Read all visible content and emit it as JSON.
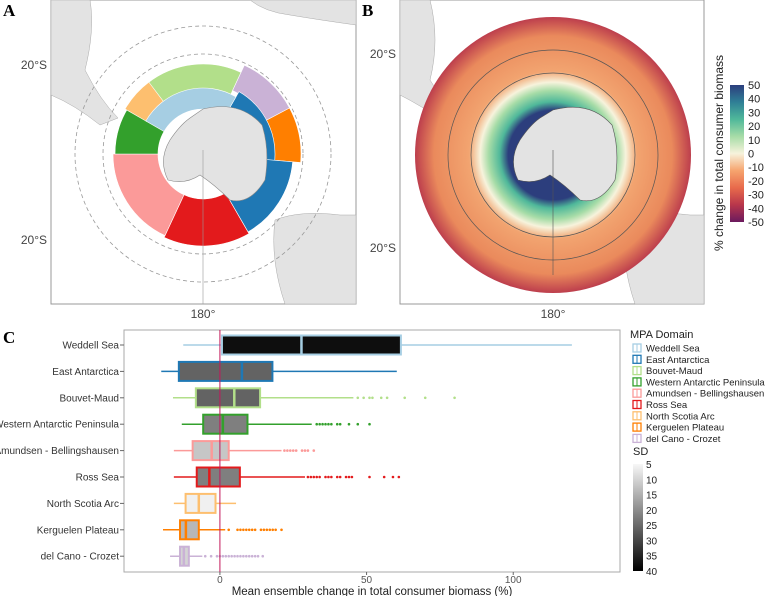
{
  "panels": {
    "a": "A",
    "b": "B",
    "c": "C"
  },
  "map_a": {
    "lat_labels": [
      "20°S",
      "20°S"
    ],
    "lon_label": "180°",
    "land_color": "#e3e3e3",
    "domains": [
      {
        "name": "Bouvet-Maud",
        "color": "#b2df8a"
      },
      {
        "name": "del Cano - Crozet",
        "color": "#cab2d6"
      },
      {
        "name": "Kerguelen Plateau",
        "color": "#ff7f00"
      },
      {
        "name": "East Antarctica",
        "color": "#1f78b4"
      },
      {
        "name": "Ross Sea",
        "color": "#e31a1c"
      },
      {
        "name": "Amundsen - Bellingshausen",
        "color": "#fb9a99"
      },
      {
        "name": "Western Antarctic Peninsula",
        "color": "#33a02c"
      },
      {
        "name": "North Scotia Arc",
        "color": "#fdbf6f"
      },
      {
        "name": "Weddell Sea",
        "color": "#a6cee3"
      }
    ]
  },
  "map_b": {
    "lat_labels": [
      "20°S",
      "20°S"
    ],
    "lon_label": "180°",
    "colorbar": {
      "title": "% change in total consumer biomass",
      "ticks": [
        "50",
        "40",
        "30",
        "20",
        "10",
        "0",
        "-10",
        "-20",
        "-30",
        "-40",
        "-50"
      ],
      "range": [
        -50,
        50
      ],
      "colors": [
        "#2c3e7d",
        "#2f7f96",
        "#4fb89a",
        "#a6dca7",
        "#f7f3dc",
        "#f6a46e",
        "#e86a4b",
        "#b8364b",
        "#6b1a5e"
      ]
    }
  },
  "chart_data": {
    "type": "boxplot",
    "xlabel": "Mean ensemble change in total consumer biomass (%)",
    "xlim": [
      -32.7,
      136.4
    ],
    "xticks": [
      0,
      50,
      100
    ],
    "reference_line": {
      "x": 0,
      "color": "#c2185b"
    },
    "categories": [
      "Weddell Sea",
      "East Antarctica",
      "Bouvet-Maud",
      "Western Antarctic Peninsula",
      "Amundsen - Bellingshausen",
      "Ross Sea",
      "North Scotia Arc",
      "Kerguelen Plateau",
      "del Cano - Crozet"
    ],
    "series": [
      {
        "name": "Weddell Sea",
        "color": "#a6cee3",
        "sd": 38,
        "whisker_low": -12.5,
        "q1": 0.7,
        "median": 27.8,
        "q3": 61.7,
        "whisker_high": 120,
        "outliers": []
      },
      {
        "name": "East Antarctica",
        "color": "#1f78b4",
        "sd": 26,
        "whisker_low": -20,
        "q1": -14,
        "median": 7.5,
        "q3": 17.9,
        "whisker_high": 60.3,
        "outliers": []
      },
      {
        "name": "Bouvet-Maud",
        "color": "#b2df8a",
        "sd": 26,
        "whisker_low": -16,
        "q1": -8.2,
        "median": 4.9,
        "q3": 13.7,
        "whisker_high": 45.5,
        "outliers": [
          47,
          49,
          51,
          52,
          55,
          57,
          63,
          70,
          80
        ]
      },
      {
        "name": "Western Antarctic Peninsula",
        "color": "#33a02c",
        "sd": 22,
        "whisker_low": -13,
        "q1": -5.7,
        "median": 1,
        "q3": 9.4,
        "whisker_high": 31.3,
        "outliers": [
          33,
          34,
          35,
          36,
          37,
          38,
          40,
          41,
          44,
          47,
          51
        ]
      },
      {
        "name": "Amundsen - Bellingshausen",
        "color": "#fb9a99",
        "sd": 12,
        "whisker_low": -15.7,
        "q1": -9.3,
        "median": -2.8,
        "q3": 3,
        "whisker_high": 21,
        "outliers": [
          22,
          23,
          24,
          25,
          26,
          28,
          29,
          30,
          32
        ]
      },
      {
        "name": "Ross Sea",
        "color": "#e31a1c",
        "sd": 22,
        "whisker_low": -15.7,
        "q1": -7.9,
        "median": -3.6,
        "q3": 6.8,
        "whisker_high": 29,
        "outliers": [
          30,
          31,
          32,
          33,
          34,
          36,
          37,
          38,
          40,
          41,
          43,
          44,
          45,
          51,
          56,
          59,
          61
        ]
      },
      {
        "name": "North Scotia Arc",
        "color": "#fdbf6f",
        "sd": 6,
        "whisker_low": -15.7,
        "q1": -11.7,
        "median": -7.2,
        "q3": -1.5,
        "whisker_high": 5.5,
        "outliers": []
      },
      {
        "name": "Kerguelen Plateau",
        "color": "#ff7f00",
        "sd": 14,
        "whisker_low": -19.4,
        "q1": -13.6,
        "median": -11.6,
        "q3": -7.2,
        "whisker_high": 1.8,
        "outliers": [
          3,
          6,
          7,
          8,
          9,
          10,
          11,
          12,
          14,
          15,
          16,
          17,
          18,
          19,
          21
        ]
      },
      {
        "name": "del Cano - Crozet",
        "color": "#cab2d6",
        "sd": 10,
        "whisker_low": -17,
        "q1": -13.6,
        "median": -12.3,
        "q3": -10.6,
        "whisker_high": -6,
        "outliers": [
          -5,
          -3,
          -1,
          0,
          1,
          2,
          3,
          4,
          5,
          6,
          7,
          8,
          9,
          10,
          11,
          12,
          13,
          14.6
        ]
      }
    ],
    "legend": {
      "title": "MPA Domain",
      "placement": "right"
    },
    "sd_legend": {
      "title": "SD",
      "ticks": [
        "5",
        "10",
        "15",
        "20",
        "25",
        "30",
        "35",
        "40"
      ],
      "range": [
        5,
        40
      ]
    }
  }
}
